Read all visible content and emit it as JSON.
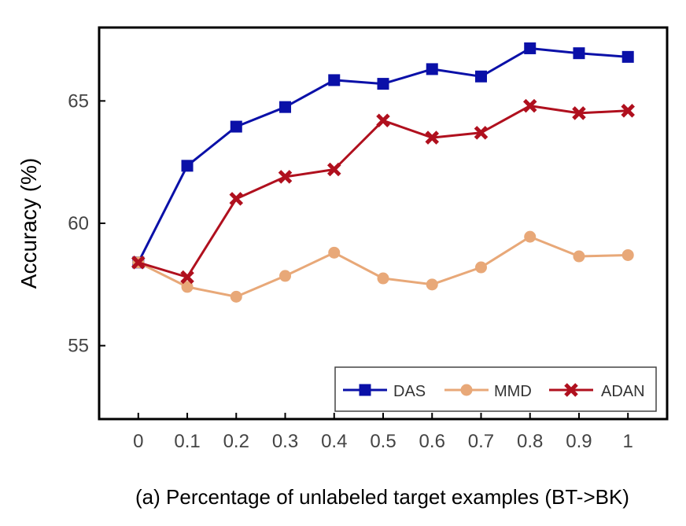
{
  "chart_data": {
    "type": "line",
    "xlabel": "(a)  Percentage of unlabeled target examples (BT->BK)",
    "ylabel": "Accuracy (%)",
    "x": [
      0,
      0.1,
      0.2,
      0.3,
      0.4,
      0.5,
      0.6,
      0.7,
      0.8,
      0.9,
      1
    ],
    "x_tick_labels": [
      "0",
      "0.1",
      "0.2",
      "0.3",
      "0.4",
      "0.5",
      "0.6",
      "0.7",
      "0.8",
      "0.9",
      "1"
    ],
    "y_ticks": [
      55,
      60,
      65
    ],
    "y_tick_labels": [
      "55",
      "60",
      "65"
    ],
    "ylim": [
      52,
      68
    ],
    "xlim": [
      -0.08,
      1.08
    ],
    "grid": false,
    "legend_position": "bottom-right",
    "series": [
      {
        "name": "DAS",
        "color": "#0a10a8",
        "marker": "square",
        "values": [
          58.4,
          62.35,
          63.95,
          64.75,
          65.85,
          65.7,
          66.3,
          66.0,
          67.15,
          66.95,
          66.8
        ]
      },
      {
        "name": "MMD",
        "color": "#e8a878",
        "marker": "circle",
        "values": [
          58.4,
          57.4,
          57.0,
          57.85,
          58.8,
          57.75,
          57.5,
          58.2,
          59.45,
          58.65,
          58.7
        ]
      },
      {
        "name": "ADAN",
        "color": "#b0101e",
        "marker": "x",
        "values": [
          58.4,
          57.8,
          61.0,
          61.9,
          62.2,
          64.2,
          63.5,
          63.7,
          64.8,
          64.5,
          64.6
        ]
      }
    ]
  }
}
